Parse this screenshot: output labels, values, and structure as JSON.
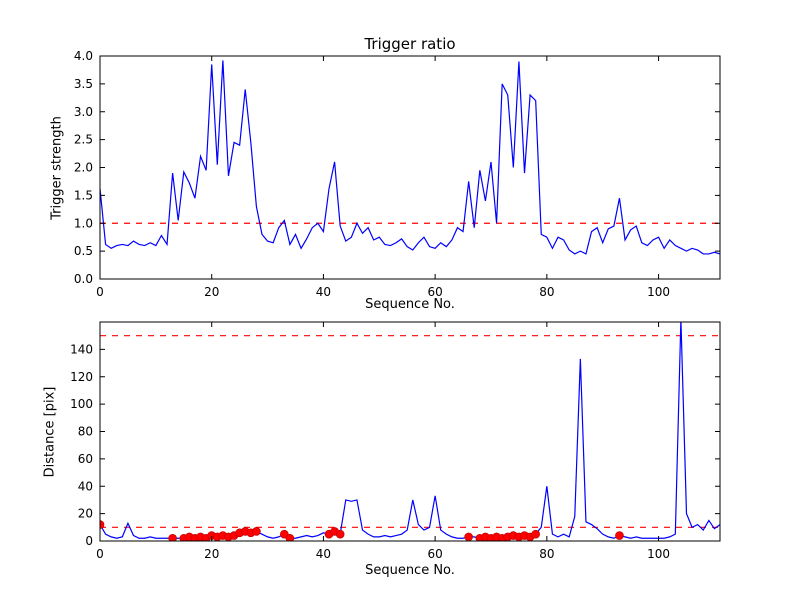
{
  "figure": {
    "background": "#ffffff",
    "line_color": "#0000ff",
    "threshold_color": "#ff0000",
    "marker_color": "#ff0000"
  },
  "chart_data": [
    {
      "type": "line",
      "title": "Trigger ratio",
      "xlabel": "Sequence No.",
      "ylabel": "Trigger strength",
      "xlim": [
        0,
        111
      ],
      "ylim": [
        0,
        4.0
      ],
      "xticks": [
        0,
        20,
        40,
        60,
        80,
        100
      ],
      "xtick_labels": [
        "0",
        "20",
        "40",
        "60",
        "80",
        "100"
      ],
      "yticks": [
        0,
        0.5,
        1.0,
        1.5,
        2.0,
        2.5,
        3.0,
        3.5,
        4.0
      ],
      "ytick_labels": [
        "0.0",
        "0.5",
        "1.0",
        "1.5",
        "2.0",
        "2.5",
        "3.0",
        "3.5",
        "4.0"
      ],
      "line_color": "#0000ff",
      "grid": false,
      "hlines": [
        {
          "y": 1.0,
          "color": "#ff0000",
          "style": "dashed"
        }
      ],
      "x_note": "x value equals sample index 0..111",
      "values": [
        1.62,
        0.62,
        0.55,
        0.6,
        0.62,
        0.6,
        0.68,
        0.62,
        0.6,
        0.65,
        0.6,
        0.78,
        0.62,
        1.9,
        1.05,
        1.92,
        1.72,
        1.45,
        2.2,
        1.95,
        3.85,
        2.05,
        3.92,
        1.85,
        2.45,
        2.4,
        3.4,
        2.45,
        1.3,
        0.8,
        0.68,
        0.65,
        0.92,
        1.05,
        0.62,
        0.8,
        0.55,
        0.72,
        0.92,
        1.0,
        0.85,
        1.62,
        2.1,
        0.95,
        0.68,
        0.75,
        1.0,
        0.82,
        0.92,
        0.7,
        0.75,
        0.62,
        0.6,
        0.65,
        0.72,
        0.58,
        0.52,
        0.65,
        0.75,
        0.58,
        0.55,
        0.65,
        0.58,
        0.7,
        0.92,
        0.85,
        1.75,
        0.92,
        1.95,
        1.4,
        2.1,
        1.0,
        3.5,
        3.3,
        2.0,
        3.9,
        1.9,
        3.3,
        3.2,
        0.8,
        0.75,
        0.55,
        0.75,
        0.7,
        0.52,
        0.45,
        0.5,
        0.45,
        0.85,
        0.92,
        0.65,
        0.9,
        0.95,
        1.45,
        0.7,
        0.88,
        0.95,
        0.65,
        0.6,
        0.7,
        0.75,
        0.55,
        0.7,
        0.6,
        0.55,
        0.5,
        0.55,
        0.52,
        0.45,
        0.45,
        0.48,
        0.45
      ]
    },
    {
      "type": "line",
      "title": "",
      "xlabel": "Sequence No.",
      "ylabel": "Distance [pix]",
      "xlim": [
        0,
        111
      ],
      "ylim": [
        0,
        160
      ],
      "xticks": [
        0,
        20,
        40,
        60,
        80,
        100
      ],
      "xtick_labels": [
        "0",
        "20",
        "40",
        "60",
        "80",
        "100"
      ],
      "yticks": [
        0,
        20,
        40,
        60,
        80,
        100,
        120,
        140
      ],
      "ytick_labels": [
        "0",
        "20",
        "40",
        "60",
        "80",
        "100",
        "120",
        "140"
      ],
      "line_color": "#0000ff",
      "grid": false,
      "hlines": [
        {
          "y": 10,
          "color": "#ff0000",
          "style": "dashed"
        },
        {
          "y": 150,
          "color": "#ff0000",
          "style": "dashed"
        }
      ],
      "x_note": "x value equals sample index 0..111",
      "values": [
        12,
        5,
        3,
        2,
        3,
        13,
        4,
        2,
        2,
        3,
        2,
        2,
        2,
        2,
        2,
        2,
        3,
        2,
        3,
        2,
        4,
        3,
        4,
        3,
        4,
        6,
        7,
        6,
        7,
        5,
        3,
        2,
        3,
        5,
        2,
        2,
        3,
        4,
        3,
        4,
        6,
        5,
        7,
        5,
        30,
        29,
        30,
        8,
        5,
        3,
        3,
        4,
        3,
        4,
        5,
        8,
        30,
        12,
        8,
        10,
        33,
        8,
        5,
        3,
        2,
        2,
        3,
        3,
        2,
        3,
        2,
        3,
        2,
        3,
        4,
        3,
        4,
        3,
        5,
        10,
        40,
        5,
        3,
        5,
        3,
        18,
        133,
        14,
        12,
        9,
        5,
        3,
        2,
        4,
        3,
        2,
        3,
        2,
        2,
        2,
        2,
        2,
        3,
        5,
        162,
        20,
        10,
        12,
        8,
        15,
        9,
        12
      ],
      "markers": {
        "shape": "circle",
        "color": "#ff0000",
        "edge_color": "#b20000",
        "points": [
          [
            0,
            12
          ],
          [
            13,
            2
          ],
          [
            15,
            2
          ],
          [
            16,
            3
          ],
          [
            17,
            2
          ],
          [
            18,
            3
          ],
          [
            19,
            2
          ],
          [
            20,
            4
          ],
          [
            21,
            3
          ],
          [
            22,
            4
          ],
          [
            23,
            3
          ],
          [
            24,
            4
          ],
          [
            25,
            6
          ],
          [
            26,
            7
          ],
          [
            27,
            6
          ],
          [
            28,
            7
          ],
          [
            33,
            5
          ],
          [
            34,
            2
          ],
          [
            41,
            5
          ],
          [
            42,
            7
          ],
          [
            43,
            5
          ],
          [
            66,
            3
          ],
          [
            68,
            2
          ],
          [
            69,
            3
          ],
          [
            70,
            2
          ],
          [
            71,
            3
          ],
          [
            72,
            2
          ],
          [
            73,
            3
          ],
          [
            74,
            4
          ],
          [
            75,
            3
          ],
          [
            76,
            4
          ],
          [
            77,
            3
          ],
          [
            78,
            5
          ],
          [
            93,
            4
          ]
        ]
      }
    }
  ]
}
